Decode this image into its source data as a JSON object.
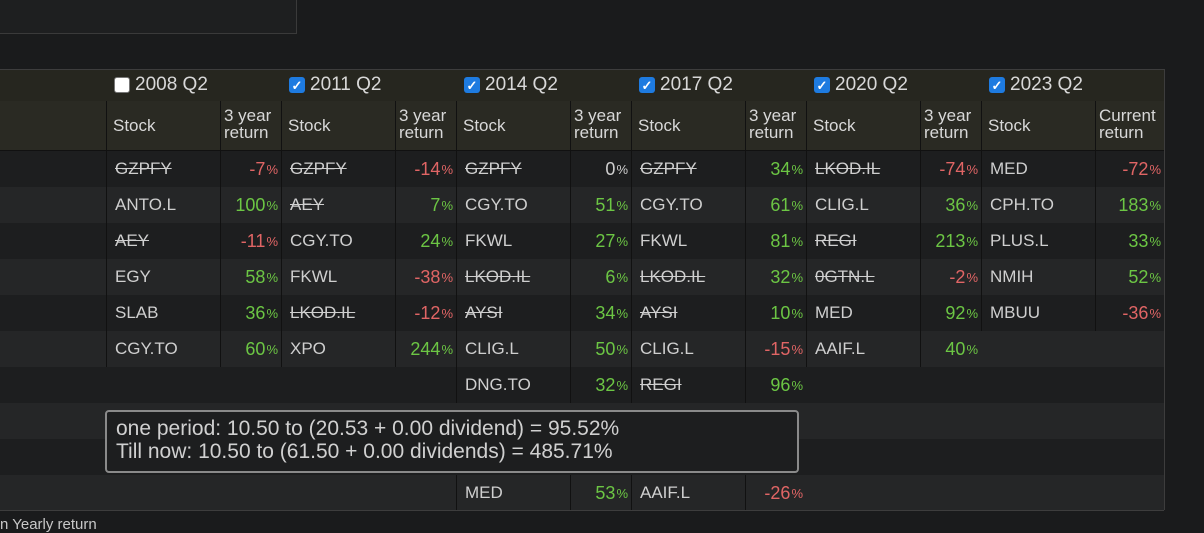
{
  "quarters": [
    {
      "label": "2008 Q2",
      "checked": false
    },
    {
      "label": "2011 Q2",
      "checked": true
    },
    {
      "label": "2014 Q2",
      "checked": true
    },
    {
      "label": "2017 Q2",
      "checked": true
    },
    {
      "label": "2020 Q2",
      "checked": true
    },
    {
      "label": "2023 Q2",
      "checked": true
    }
  ],
  "headers": {
    "stock": "Stock",
    "return_line1": "3 year",
    "return_line2": "return",
    "current_line1": "Current",
    "current_line2": "return"
  },
  "percent_sign": "%",
  "rows": [
    [
      {
        "s": "GZPFY",
        "x": true,
        "r": "-7"
      },
      {
        "s": "GZPFY",
        "x": true,
        "r": "-14"
      },
      {
        "s": "GZPFY",
        "x": true,
        "r": "0"
      },
      {
        "s": "GZPFY",
        "x": true,
        "r": "34"
      },
      {
        "s": "LKOD.IL",
        "x": true,
        "r": "-74"
      },
      {
        "s": "MED",
        "x": false,
        "r": "-72"
      }
    ],
    [
      {
        "s": "ANTO.L",
        "x": false,
        "r": "100"
      },
      {
        "s": "AEY",
        "x": true,
        "r": "7"
      },
      {
        "s": "CGY.TO",
        "x": false,
        "r": "51"
      },
      {
        "s": "CGY.TO",
        "x": false,
        "r": "61"
      },
      {
        "s": "CLIG.L",
        "x": false,
        "r": "36"
      },
      {
        "s": "CPH.TO",
        "x": false,
        "r": "183"
      }
    ],
    [
      {
        "s": "AEY",
        "x": true,
        "r": "-11"
      },
      {
        "s": "CGY.TO",
        "x": false,
        "r": "24"
      },
      {
        "s": "FKWL",
        "x": false,
        "r": "27"
      },
      {
        "s": "FKWL",
        "x": false,
        "r": "81"
      },
      {
        "s": "REGI",
        "x": true,
        "r": "213"
      },
      {
        "s": "PLUS.L",
        "x": false,
        "r": "33"
      }
    ],
    [
      {
        "s": "EGY",
        "x": false,
        "r": "58"
      },
      {
        "s": "FKWL",
        "x": false,
        "r": "-38"
      },
      {
        "s": "LKOD.IL",
        "x": true,
        "r": "6"
      },
      {
        "s": "LKOD.IL",
        "x": true,
        "r": "32"
      },
      {
        "s": "0GTN.L",
        "x": true,
        "r": "-2"
      },
      {
        "s": "NMIH",
        "x": false,
        "r": "52"
      }
    ],
    [
      {
        "s": "SLAB",
        "x": false,
        "r": "36"
      },
      {
        "s": "LKOD.IL",
        "x": true,
        "r": "-12"
      },
      {
        "s": "AYSI",
        "x": true,
        "r": "34"
      },
      {
        "s": "AYSI",
        "x": true,
        "r": "10"
      },
      {
        "s": "MED",
        "x": false,
        "r": "92"
      },
      {
        "s": "MBUU",
        "x": false,
        "r": "-36"
      }
    ],
    [
      {
        "s": "CGY.TO",
        "x": false,
        "r": "60"
      },
      {
        "s": "XPO",
        "x": false,
        "r": "244"
      },
      {
        "s": "CLIG.L",
        "x": false,
        "r": "50"
      },
      {
        "s": "CLIG.L",
        "x": false,
        "r": "-15"
      },
      {
        "s": "AAIF.L",
        "x": false,
        "r": "40"
      },
      null
    ],
    [
      null,
      null,
      {
        "s": "DNG.TO",
        "x": false,
        "r": "32"
      },
      {
        "s": "REGI",
        "x": true,
        "r": "96"
      },
      null,
      null
    ],
    [
      null,
      null,
      null,
      null,
      null,
      null
    ],
    [
      null,
      null,
      null,
      null,
      null,
      null
    ],
    [
      null,
      null,
      {
        "s": "MED",
        "x": false,
        "r": "53"
      },
      {
        "s": "AAIF.L",
        "x": false,
        "r": "-26"
      },
      null,
      null
    ]
  ],
  "tooltip": {
    "line1": "one period: 10.50 to (20.53 + 0.00 dividend) = 95.52%",
    "line2": "Till now: 10.50 to (61.50 + 0.00 dividends) = 485.71%"
  },
  "footer": "n Yearly return",
  "colors": {
    "positive": "#6cc644",
    "negative": "#e06565",
    "accent": "#1e7be0"
  }
}
